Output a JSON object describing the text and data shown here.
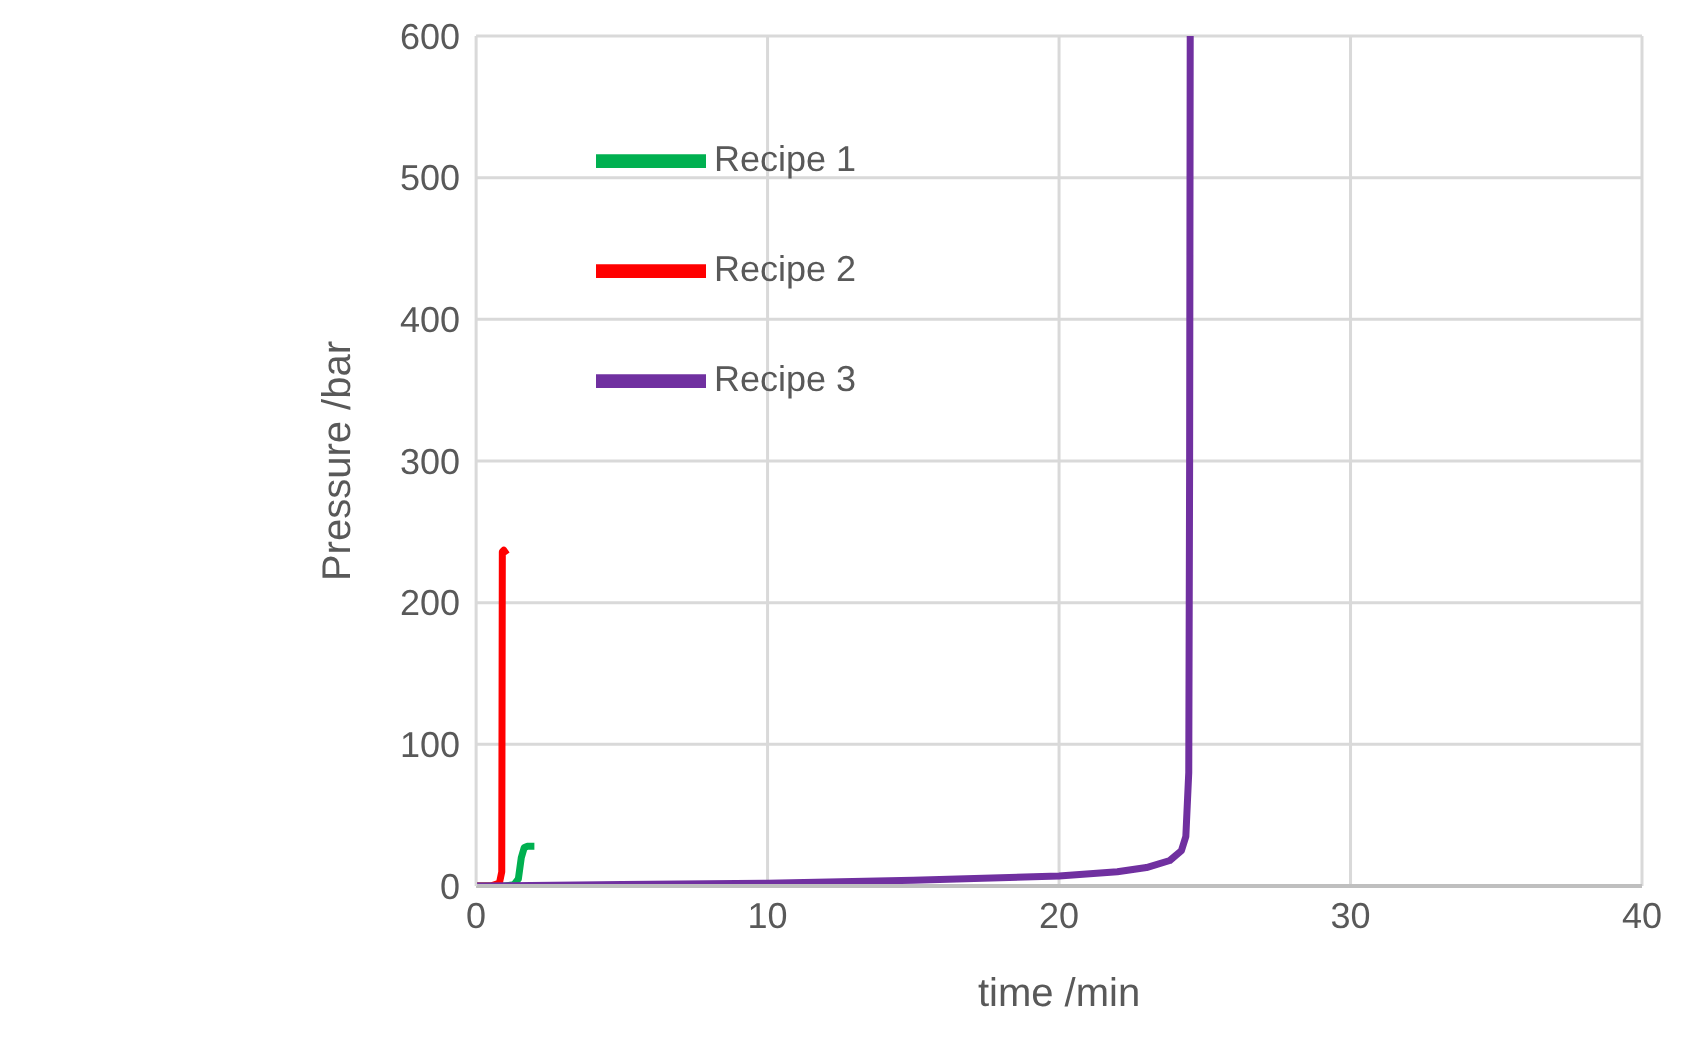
{
  "chart_data": {
    "type": "line",
    "xlabel": "time /min",
    "ylabel": "Pressure /bar",
    "xlim": [
      0,
      40
    ],
    "xticks": [
      0,
      10,
      20,
      30,
      40
    ],
    "ylim": [
      0,
      600
    ],
    "yticks": [
      0,
      100,
      200,
      300,
      400,
      500,
      600
    ],
    "grid": true,
    "legend": "top left",
    "marker": "none",
    "line_style": "solid",
    "series": [
      {
        "name": "Recipe 1",
        "color": "#00b050",
        "x": [
          0,
          1,
          1.3,
          1.45,
          1.55,
          1.65,
          1.75,
          2.0
        ],
        "values": [
          0,
          0,
          1,
          5,
          20,
          27,
          28,
          28
        ]
      },
      {
        "name": "Recipe 2",
        "color": "#ff0000",
        "x": [
          0,
          0.5,
          0.8,
          0.88,
          0.9,
          0.95,
          1.05
        ],
        "values": [
          0,
          0,
          2,
          10,
          236,
          237,
          234
        ]
      },
      {
        "name": "Recipe 3",
        "color": "#7030a0",
        "x": [
          0,
          5,
          10,
          15,
          20,
          22,
          23,
          23.8,
          24.2,
          24.35,
          24.45,
          24.48,
          24.5
        ],
        "values": [
          0,
          1,
          2,
          4,
          7,
          10,
          13,
          18,
          25,
          35,
          80,
          300,
          600
        ]
      }
    ]
  }
}
